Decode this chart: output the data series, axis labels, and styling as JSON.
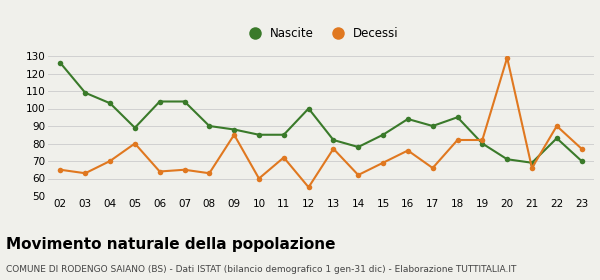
{
  "years": [
    "02",
    "03",
    "04",
    "05",
    "06",
    "07",
    "08",
    "09",
    "10",
    "11",
    "12",
    "13",
    "14",
    "15",
    "16",
    "17",
    "18",
    "19",
    "20",
    "21",
    "22",
    "23"
  ],
  "nascite": [
    126,
    109,
    103,
    89,
    104,
    104,
    90,
    88,
    85,
    85,
    100,
    82,
    78,
    85,
    94,
    90,
    95,
    80,
    71,
    69,
    83,
    70
  ],
  "decessi": [
    65,
    63,
    70,
    80,
    64,
    65,
    63,
    85,
    60,
    72,
    55,
    77,
    62,
    69,
    76,
    66,
    82,
    82,
    129,
    66,
    90,
    77
  ],
  "nascite_color": "#3a7a2a",
  "decessi_color": "#e07820",
  "bg_color": "#f0f0eb",
  "grid_color": "#cccccc",
  "ylim": [
    50,
    130
  ],
  "yticks": [
    50,
    60,
    70,
    80,
    90,
    100,
    110,
    120,
    130
  ],
  "title": "Movimento naturale della popolazione",
  "subtitle": "COMUNE DI RODENGO SAIANO (BS) - Dati ISTAT (bilancio demografico 1 gen-31 dic) - Elaborazione TUTTITALIA.IT",
  "legend_nascite": "Nascite",
  "legend_decessi": "Decessi",
  "marker_size": 4,
  "line_width": 1.5,
  "title_fontsize": 11,
  "subtitle_fontsize": 6.5,
  "tick_fontsize": 7.5,
  "legend_fontsize": 8.5
}
